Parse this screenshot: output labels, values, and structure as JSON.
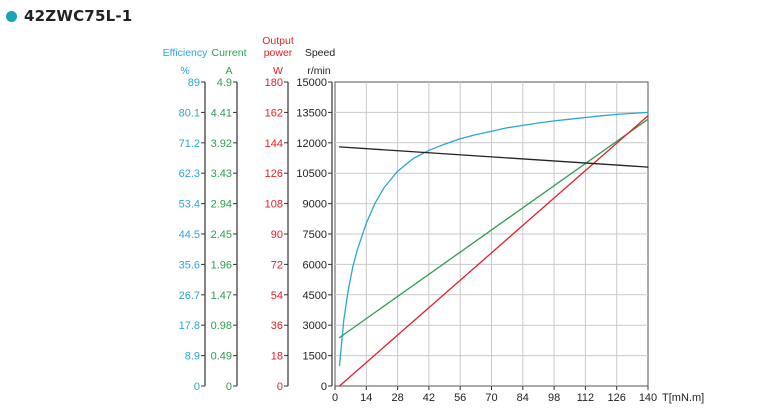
{
  "title": "42ZWC75L-1",
  "colors": {
    "title_dot": "#1aa3b8",
    "efficiency": "#2aa6d6",
    "current": "#2e9e50",
    "power": "#e0202a",
    "speed": "#222222",
    "grid": "#c9c9c9"
  },
  "chart_data": {
    "type": "line",
    "grid": true,
    "x_axis": {
      "label": "T[mN.m]",
      "ticks": [
        "0",
        "14",
        "28",
        "42",
        "56",
        "70",
        "84",
        "98",
        "112",
        "126",
        "140"
      ],
      "range": [
        0,
        140
      ]
    },
    "y_axes": [
      {
        "key": "efficiency",
        "name_lines": [
          "Efficiency"
        ],
        "unit": "%",
        "ticks": [
          "0",
          "8.9",
          "17.8",
          "26.7",
          "35.6",
          "44.5",
          "53.4",
          "62.3",
          "71.2",
          "80.1",
          "89"
        ],
        "range": [
          0,
          89
        ]
      },
      {
        "key": "current",
        "name_lines": [
          "Current"
        ],
        "unit": "A",
        "ticks": [
          "0",
          "0.49",
          "0.98",
          "1.47",
          "1.96",
          "2.45",
          "2.94",
          "3.43",
          "3.92",
          "4.41",
          "4.9"
        ],
        "range": [
          0,
          4.9
        ]
      },
      {
        "key": "power",
        "name_lines": [
          "Output",
          "power"
        ],
        "unit": "W",
        "ticks": [
          "0",
          "18",
          "36",
          "54",
          "72",
          "90",
          "108",
          "126",
          "144",
          "162",
          "180"
        ],
        "range": [
          0,
          180
        ]
      },
      {
        "key": "speed",
        "name_lines": [
          "Speed"
        ],
        "unit": "r/min",
        "ticks": [
          "0",
          "1500",
          "3000",
          "4500",
          "6000",
          "7500",
          "9000",
          "10500",
          "12000",
          "13500",
          "15000"
        ],
        "range": [
          0,
          15000
        ]
      }
    ],
    "series": [
      {
        "key": "efficiency",
        "axis": "efficiency",
        "x": [
          2,
          4,
          6,
          8,
          10,
          14,
          18,
          22,
          28,
          35,
          42,
          49,
          56,
          63,
          70,
          77,
          84,
          91,
          98,
          105,
          112,
          119,
          126,
          133,
          140
        ],
        "y": [
          6,
          19.6,
          28.4,
          35,
          39.9,
          47.7,
          53.6,
          58.1,
          62.9,
          66.6,
          69,
          70.8,
          72.4,
          73.6,
          74.6,
          75.6,
          76.3,
          77,
          77.6,
          78.1,
          78.6,
          79.1,
          79.5,
          79.8,
          80.1
        ]
      },
      {
        "key": "current",
        "axis": "current",
        "x": [
          2,
          140
        ],
        "y": [
          0.78,
          4.3
        ]
      },
      {
        "key": "power",
        "axis": "power",
        "x": [
          2,
          140
        ],
        "y": [
          0,
          160
        ]
      },
      {
        "key": "speed",
        "axis": "speed",
        "x": [
          2,
          140
        ],
        "y": [
          11800,
          10800
        ]
      }
    ]
  }
}
